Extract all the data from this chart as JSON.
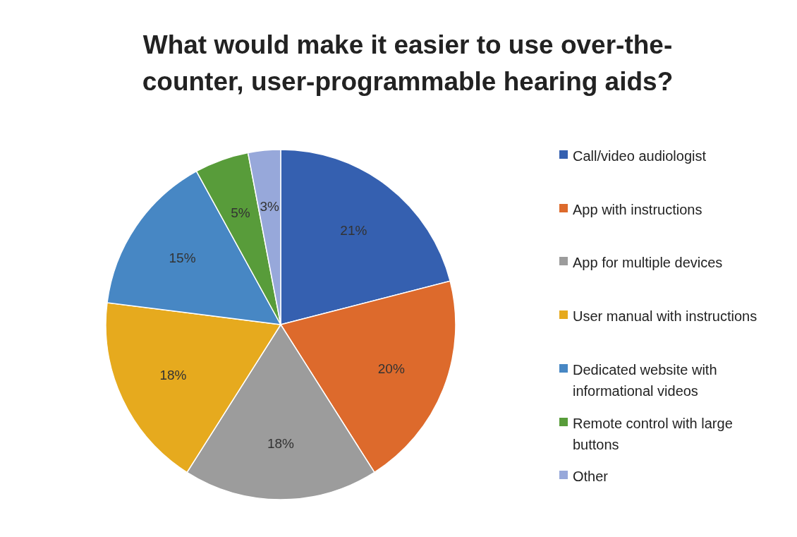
{
  "chart_data": {
    "type": "pie",
    "title": "What would make it easier to use over-the-counter, user-programmable hearing aids?",
    "categories": [
      "Call/video audiologist",
      "App with instructions",
      "App for multiple devices",
      "User manual with instructions",
      "Dedicated website with informational videos",
      "Remote control with large buttons",
      "Other"
    ],
    "values": [
      21,
      20,
      18,
      18,
      15,
      5,
      3
    ],
    "value_labels": [
      "21%",
      "20%",
      "18%",
      "18%",
      "15%",
      "5%",
      "3%"
    ],
    "colors": [
      "#3560b0",
      "#dd6a2c",
      "#9c9c9c",
      "#e6aa1e",
      "#4787c4",
      "#589c3a",
      "#97a8da"
    ],
    "legend": "right"
  }
}
